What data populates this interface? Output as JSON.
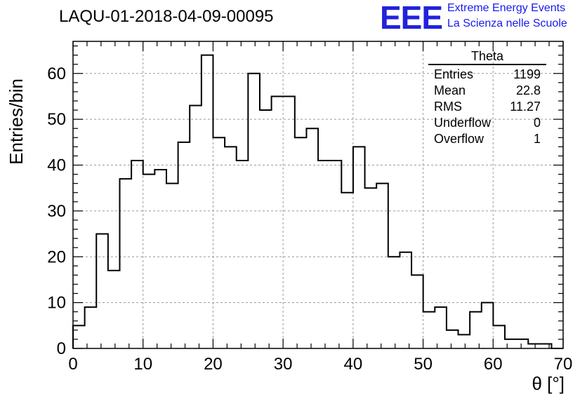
{
  "header": {
    "title": "LAQU-01-2018-04-09-00095",
    "logo_text": "EEE",
    "logo_line1": "Extreme Energy Events",
    "logo_line2": "La Scienza nelle Scuole"
  },
  "stats_box": {
    "title": "Theta",
    "rows": [
      {
        "label": "Entries",
        "value": "1199"
      },
      {
        "label": "Mean",
        "value": "22.8"
      },
      {
        "label": "RMS",
        "value": "11.27"
      },
      {
        "label": "Underflow",
        "value": "0"
      },
      {
        "label": "Overflow",
        "value": "1"
      }
    ]
  },
  "colors": {
    "line": "#000000",
    "grid": "#999999",
    "logo": "#2222dd"
  },
  "chart_data": {
    "type": "histogram",
    "title": "LAQU-01-2018-04-09-00095",
    "xlabel": "θ [°]",
    "ylabel": "Entries/bin",
    "xlim": [
      0,
      70
    ],
    "ylim": [
      0,
      67
    ],
    "bin_width": 1.667,
    "bin_edges_start": 0,
    "values": [
      5,
      9,
      25,
      17,
      37,
      41,
      38,
      39,
      36,
      45,
      53,
      64,
      46,
      44,
      41,
      60,
      52,
      55,
      55,
      46,
      48,
      41,
      41,
      34,
      44,
      35,
      36,
      20,
      21,
      16,
      8,
      9,
      4,
      3,
      8,
      10,
      5,
      2,
      2,
      1,
      1,
      0,
      0
    ],
    "x_ticks": [
      0,
      10,
      20,
      30,
      40,
      50,
      60,
      70
    ],
    "y_ticks": [
      0,
      10,
      20,
      30,
      40,
      50,
      60
    ],
    "grid": true
  }
}
